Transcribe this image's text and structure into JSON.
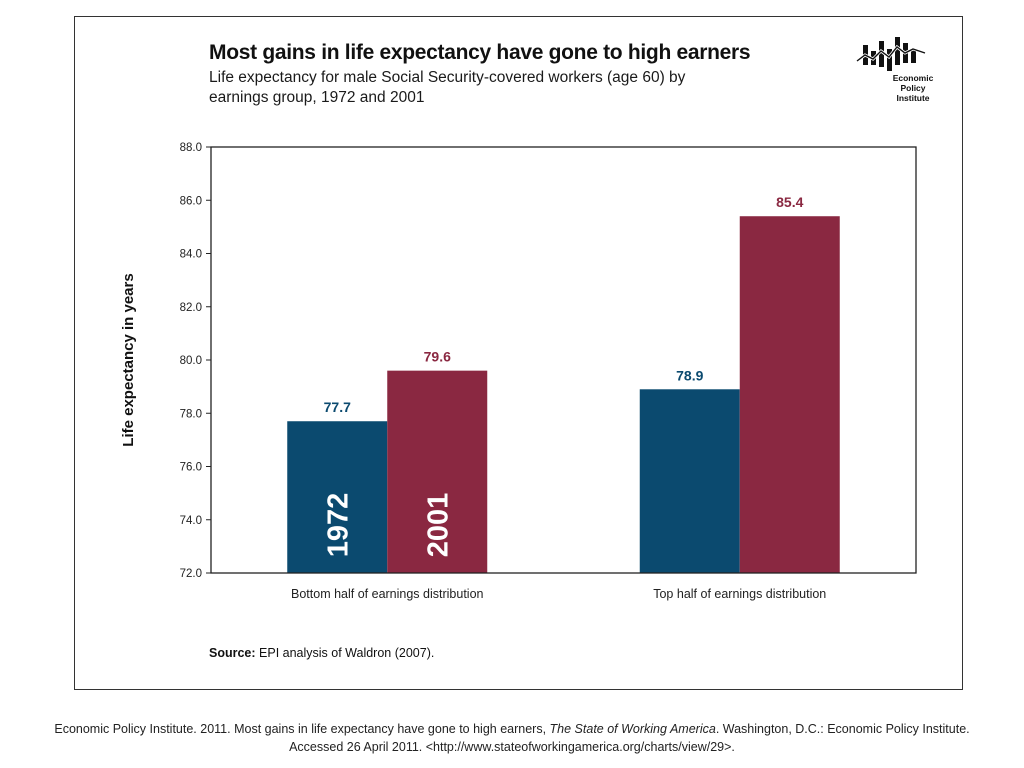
{
  "header": {
    "title": "Most gains in life expectancy have gone to high earners",
    "subtitle": "Life expectancy for male Social Security-covered workers (age 60) by earnings group, 1972 and 2001"
  },
  "logo": {
    "line1": "Economic",
    "line2": "Policy",
    "line3": "Institute",
    "icon": "epi-bar-chart-logo-icon"
  },
  "chart_data": {
    "type": "bar",
    "title": "Most gains in life expectancy have gone to high earners",
    "subtitle": "Life expectancy for male Social Security-covered workers (age 60) by earnings group, 1972 and 2001",
    "categories": [
      "Bottom half of earnings distribution",
      "Top half of earnings distribution"
    ],
    "series": [
      {
        "name": "1972",
        "values": [
          77.7,
          78.9
        ],
        "color": "#0b4a6f",
        "labels": [
          "77.7",
          "78.9"
        ]
      },
      {
        "name": "2001",
        "values": [
          79.6,
          85.4
        ],
        "color": "#8a2841",
        "labels": [
          "79.6",
          "85.4"
        ]
      }
    ],
    "xlabel": "",
    "ylabel": "Life expectancy in years",
    "ylim": [
      72,
      88
    ],
    "yticks": [
      "72.0",
      "74.0",
      "76.0",
      "78.0",
      "80.0",
      "82.0",
      "84.0",
      "86.0",
      "88.0"
    ],
    "grid": false,
    "legend": "series names printed inside the first pair of bars"
  },
  "source": {
    "label": "Source:",
    "text": " EPI analysis of Waldron (2007)."
  },
  "citation": {
    "pre": "Economic Policy Institute. 2011. Most gains in life expectancy have gone to high earners, ",
    "italic": "The State of Working America",
    "post": ". Washington, D.C.: Economic Policy Institute.",
    "line2": "Accessed 26 April 2011. <http://www.stateofworkingamerica.org/charts/view/29>."
  }
}
